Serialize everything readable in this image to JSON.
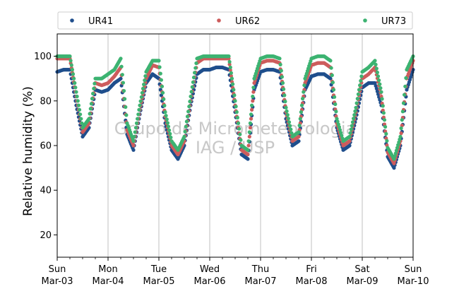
{
  "chart_data": {
    "type": "scatter",
    "title": "",
    "xlabel": "",
    "ylabel": "Relative humidity (%)",
    "ylim": [
      10,
      110
    ],
    "yticks": [
      20,
      40,
      60,
      80,
      100
    ],
    "xlim": [
      "2019-03-03",
      "2019-03-10"
    ],
    "xticks": [
      {
        "date": "2019-03-03",
        "day": "Sun",
        "date_label": "Mar-03"
      },
      {
        "date": "2019-03-04",
        "day": "Mon",
        "date_label": "Mar-04"
      },
      {
        "date": "2019-03-05",
        "day": "Tue",
        "date_label": "Mar-05"
      },
      {
        "date": "2019-03-06",
        "day": "Wed",
        "date_label": "Mar-06"
      },
      {
        "date": "2019-03-07",
        "day": "Thu",
        "date_label": "Mar-07"
      },
      {
        "date": "2019-03-08",
        "day": "Fri",
        "date_label": "Mar-08"
      },
      {
        "date": "2019-03-09",
        "day": "Sat",
        "date_label": "Mar-09"
      },
      {
        "date": "2019-03-10",
        "day": "Sun",
        "date_label": "Mar-10"
      }
    ],
    "grid": "vertical-major",
    "legend_position": "top",
    "watermark": [
      "Grupo de Micrometeorologia",
      "IAG / USP"
    ],
    "series": [
      {
        "name": "UR41",
        "color": "#1f4e8c",
        "x": [
          "2019-03-03 00:00",
          "2019-03-03 03:00",
          "2019-03-03 06:00",
          "2019-03-03 09:00",
          "2019-03-03 12:00",
          "2019-03-03 15:00",
          "2019-03-03 18:00",
          "2019-03-03 21:00",
          "2019-03-04 00:00",
          "2019-03-04 03:00",
          "2019-03-04 06:00",
          "2019-03-04 09:00",
          "2019-03-04 12:00",
          "2019-03-04 15:00",
          "2019-03-04 18:00",
          "2019-03-04 21:00",
          "2019-03-05 00:00",
          "2019-03-05 03:00",
          "2019-03-05 06:00",
          "2019-03-05 09:00",
          "2019-03-05 12:00",
          "2019-03-05 15:00",
          "2019-03-05 18:00",
          "2019-03-05 21:00",
          "2019-03-06 00:00",
          "2019-03-06 03:00",
          "2019-03-06 06:00",
          "2019-03-06 09:00",
          "2019-03-06 12:00",
          "2019-03-06 15:00",
          "2019-03-06 18:00",
          "2019-03-06 21:00",
          "2019-03-07 00:00",
          "2019-03-07 03:00",
          "2019-03-07 06:00",
          "2019-03-07 09:00",
          "2019-03-07 12:00",
          "2019-03-07 15:00",
          "2019-03-07 18:00",
          "2019-03-07 21:00",
          "2019-03-08 00:00",
          "2019-03-08 03:00",
          "2019-03-08 06:00",
          "2019-03-08 09:00",
          "2019-03-08 12:00",
          "2019-03-08 15:00",
          "2019-03-08 18:00",
          "2019-03-08 21:00",
          "2019-03-09 00:00",
          "2019-03-09 03:00",
          "2019-03-09 06:00",
          "2019-03-09 09:00",
          "2019-03-09 12:00",
          "2019-03-09 15:00",
          "2019-03-09 18:00",
          "2019-03-09 21:00",
          "2019-03-10 00:00"
        ],
        "y": [
          93,
          94,
          94,
          78,
          64,
          68,
          85,
          84,
          85,
          88,
          90,
          65,
          58,
          74,
          88,
          92,
          90,
          70,
          58,
          54,
          60,
          78,
          92,
          94,
          94,
          95,
          95,
          94,
          75,
          56,
          54,
          85,
          93,
          94,
          94,
          93,
          72,
          60,
          62,
          85,
          91,
          92,
          92,
          90,
          68,
          58,
          60,
          72,
          86,
          88,
          88,
          78,
          55,
          50,
          60,
          85,
          94
        ]
      },
      {
        "name": "UR62",
        "color": "#cd5c5c",
        "x": [
          "2019-03-03 00:00",
          "2019-03-03 03:00",
          "2019-03-03 06:00",
          "2019-03-03 09:00",
          "2019-03-03 12:00",
          "2019-03-03 15:00",
          "2019-03-03 18:00",
          "2019-03-03 21:00",
          "2019-03-04 00:00",
          "2019-03-04 03:00",
          "2019-03-04 06:00",
          "2019-03-04 09:00",
          "2019-03-04 12:00",
          "2019-03-04 15:00",
          "2019-03-04 18:00",
          "2019-03-04 21:00",
          "2019-03-05 00:00",
          "2019-03-05 03:00",
          "2019-03-05 06:00",
          "2019-03-05 09:00",
          "2019-03-05 12:00",
          "2019-03-05 15:00",
          "2019-03-05 18:00",
          "2019-03-05 21:00",
          "2019-03-06 00:00",
          "2019-03-06 03:00",
          "2019-03-06 06:00",
          "2019-03-06 09:00",
          "2019-03-06 12:00",
          "2019-03-06 15:00",
          "2019-03-06 18:00",
          "2019-03-06 21:00",
          "2019-03-07 00:00",
          "2019-03-07 03:00",
          "2019-03-07 06:00",
          "2019-03-07 09:00",
          "2019-03-07 12:00",
          "2019-03-07 15:00",
          "2019-03-07 18:00",
          "2019-03-07 21:00",
          "2019-03-08 00:00",
          "2019-03-08 03:00",
          "2019-03-08 06:00",
          "2019-03-08 09:00",
          "2019-03-08 12:00",
          "2019-03-08 15:00",
          "2019-03-08 18:00",
          "2019-03-08 21:00",
          "2019-03-09 00:00",
          "2019-03-09 03:00",
          "2019-03-09 06:00",
          "2019-03-09 09:00",
          "2019-03-09 12:00",
          "2019-03-09 15:00",
          "2019-03-09 18:00",
          "2019-03-09 21:00",
          "2019-03-10 00:00"
        ],
        "y": [
          99,
          99,
          99,
          82,
          66,
          70,
          88,
          87,
          88,
          91,
          95,
          67,
          60,
          76,
          90,
          96,
          95,
          73,
          60,
          56,
          62,
          80,
          97,
          99,
          99,
          99,
          99,
          99,
          78,
          58,
          56,
          88,
          97,
          98,
          98,
          97,
          75,
          62,
          64,
          88,
          96,
          97,
          97,
          95,
          70,
          60,
          62,
          75,
          90,
          92,
          95,
          82,
          57,
          52,
          62,
          90,
          98
        ]
      },
      {
        "name": "UR73",
        "color": "#3cb371",
        "x": [
          "2019-03-03 00:00",
          "2019-03-03 03:00",
          "2019-03-03 06:00",
          "2019-03-03 09:00",
          "2019-03-03 12:00",
          "2019-03-03 15:00",
          "2019-03-03 18:00",
          "2019-03-03 21:00",
          "2019-03-04 00:00",
          "2019-03-04 03:00",
          "2019-03-04 06:00",
          "2019-03-04 09:00",
          "2019-03-04 12:00",
          "2019-03-04 15:00",
          "2019-03-04 18:00",
          "2019-03-04 21:00",
          "2019-03-05 00:00",
          "2019-03-05 03:00",
          "2019-03-05 06:00",
          "2019-03-05 09:00",
          "2019-03-05 12:00",
          "2019-03-05 15:00",
          "2019-03-05 18:00",
          "2019-03-05 21:00",
          "2019-03-06 00:00",
          "2019-03-06 03:00",
          "2019-03-06 06:00",
          "2019-03-06 09:00",
          "2019-03-06 12:00",
          "2019-03-06 15:00",
          "2019-03-06 18:00",
          "2019-03-06 21:00",
          "2019-03-07 00:00",
          "2019-03-07 03:00",
          "2019-03-07 06:00",
          "2019-03-07 09:00",
          "2019-03-07 12:00",
          "2019-03-07 15:00",
          "2019-03-07 18:00",
          "2019-03-07 21:00",
          "2019-03-08 00:00",
          "2019-03-08 03:00",
          "2019-03-08 06:00",
          "2019-03-08 09:00",
          "2019-03-08 12:00",
          "2019-03-08 15:00",
          "2019-03-08 18:00",
          "2019-03-08 21:00",
          "2019-03-09 00:00",
          "2019-03-09 03:00",
          "2019-03-09 06:00",
          "2019-03-09 09:00",
          "2019-03-09 12:00",
          "2019-03-09 15:00",
          "2019-03-09 18:00",
          "2019-03-09 21:00",
          "2019-03-10 00:00"
        ],
        "y": [
          100,
          100,
          100,
          84,
          68,
          72,
          90,
          90,
          92,
          94,
          99,
          70,
          62,
          78,
          93,
          98,
          98,
          75,
          62,
          58,
          64,
          82,
          99,
          100,
          100,
          100,
          100,
          100,
          80,
          60,
          58,
          90,
          99,
          100,
          100,
          99,
          77,
          64,
          66,
          90,
          99,
          100,
          100,
          98,
          72,
          62,
          64,
          77,
          93,
          95,
          98,
          84,
          59,
          54,
          64,
          94,
          100
        ]
      }
    ]
  }
}
